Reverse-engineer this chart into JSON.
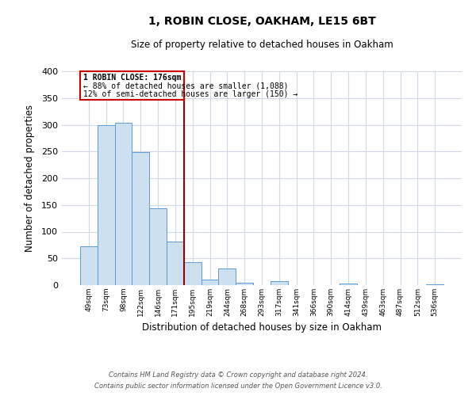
{
  "title": "1, ROBIN CLOSE, OAKHAM, LE15 6BT",
  "subtitle": "Size of property relative to detached houses in Oakham",
  "xlabel": "Distribution of detached houses by size in Oakham",
  "ylabel": "Number of detached properties",
  "footnote1": "Contains HM Land Registry data © Crown copyright and database right 2024.",
  "footnote2": "Contains public sector information licensed under the Open Government Licence v3.0.",
  "bin_labels": [
    "49sqm",
    "73sqm",
    "98sqm",
    "122sqm",
    "146sqm",
    "171sqm",
    "195sqm",
    "219sqm",
    "244sqm",
    "268sqm",
    "293sqm",
    "317sqm",
    "341sqm",
    "366sqm",
    "390sqm",
    "414sqm",
    "439sqm",
    "463sqm",
    "487sqm",
    "512sqm",
    "536sqm"
  ],
  "bar_values": [
    72,
    299,
    304,
    249,
    144,
    82,
    43,
    10,
    31,
    5,
    0,
    7,
    0,
    0,
    0,
    3,
    0,
    0,
    0,
    0,
    2
  ],
  "bar_color_fill": "#cce0f0",
  "bar_color_edge": "#5b9bd5",
  "vline_color": "#990000",
  "vline_pos": 5.5,
  "annotation_title": "1 ROBIN CLOSE: 176sqm",
  "annotation_line1": "← 88% of detached houses are smaller (1,088)",
  "annotation_line2": "12% of semi-detached houses are larger (150) →",
  "annotation_box_color": "#cc0000",
  "ylim": [
    0,
    400
  ],
  "yticks": [
    0,
    50,
    100,
    150,
    200,
    250,
    300,
    350,
    400
  ],
  "background_color": "#ffffff",
  "grid_color": "#d0d8e8"
}
